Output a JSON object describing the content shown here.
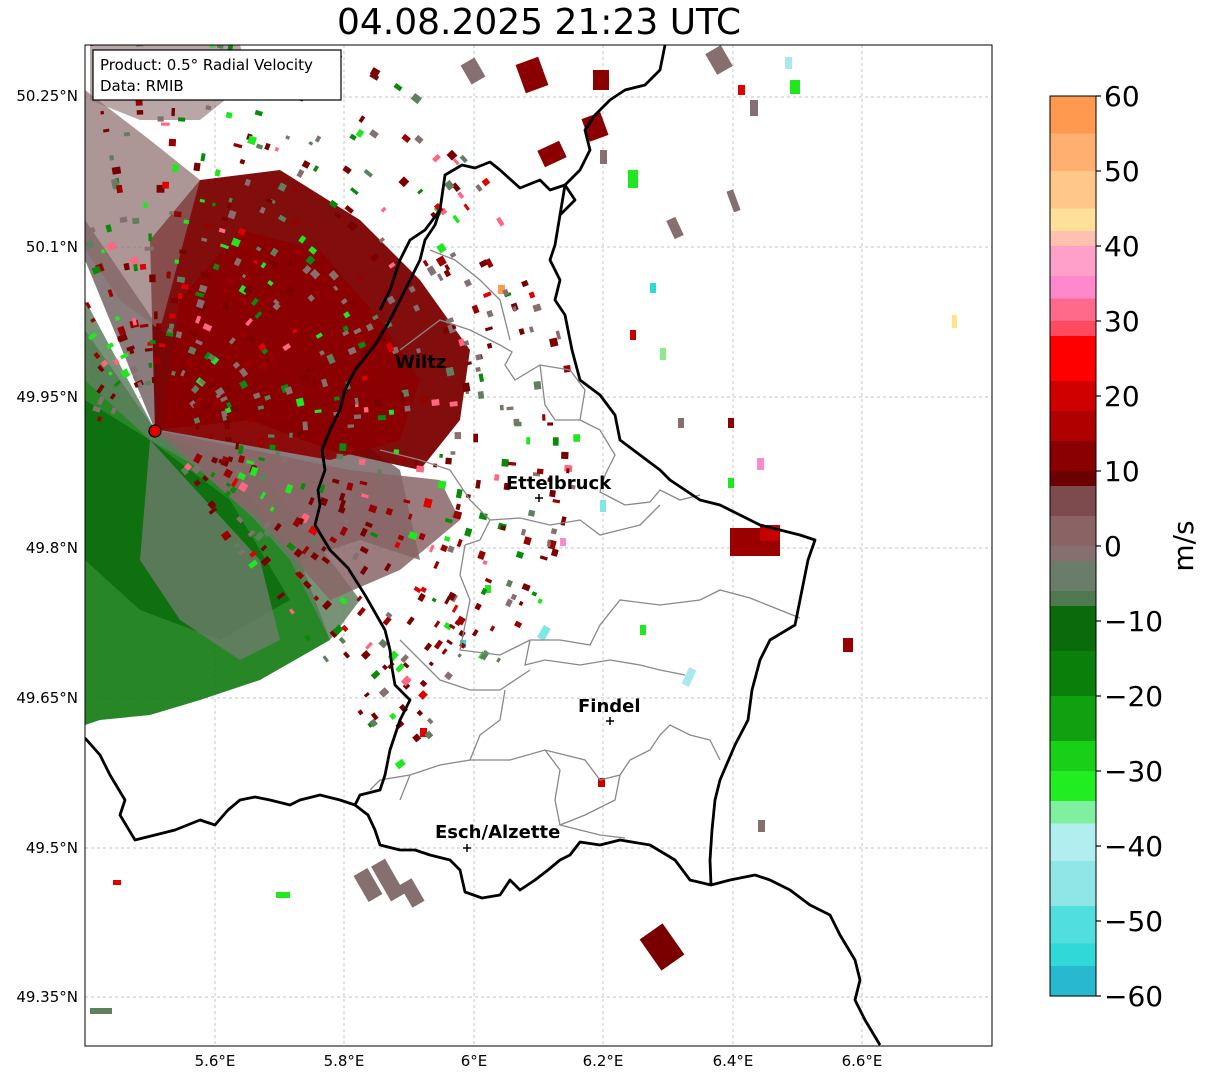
{
  "title": "04.08.2025 21:23 UTC",
  "info_box": {
    "line1": "Product: 0.5° Radial Velocity",
    "line2": "Data: RMIB"
  },
  "map": {
    "lat_ticks": [
      "50.25°N",
      "50.1°N",
      "49.95°N",
      "49.8°N",
      "49.65°N",
      "49.5°N",
      "49.35°N"
    ],
    "lon_ticks": [
      "5.6°E",
      "5.8°E",
      "6°E",
      "6.2°E",
      "6.4°E",
      "6.6°E"
    ],
    "cities": [
      {
        "name": "Wiltz"
      },
      {
        "name": "Ettelbruck"
      },
      {
        "name": "Findel"
      },
      {
        "name": "Esch/Alzette"
      }
    ]
  },
  "colorbar": {
    "label": "m/s",
    "ticks": [
      "60",
      "50",
      "40",
      "30",
      "20",
      "10",
      "0",
      "−10",
      "−20",
      "−30",
      "−40",
      "−50",
      "−60"
    ],
    "min": -60,
    "max": 60
  },
  "colors": {
    "inbound_dark": "#0a6b0a",
    "inbound_bright": "#1fe81f",
    "near_zero_green": "#5e7d5e",
    "near_zero_grey": "#85706f",
    "outbound_dark": "#7a0000",
    "outbound_red": "#e00000",
    "pink": "#ff88cc",
    "cyan": "#30d8d8",
    "radar_site": "#e00000"
  }
}
